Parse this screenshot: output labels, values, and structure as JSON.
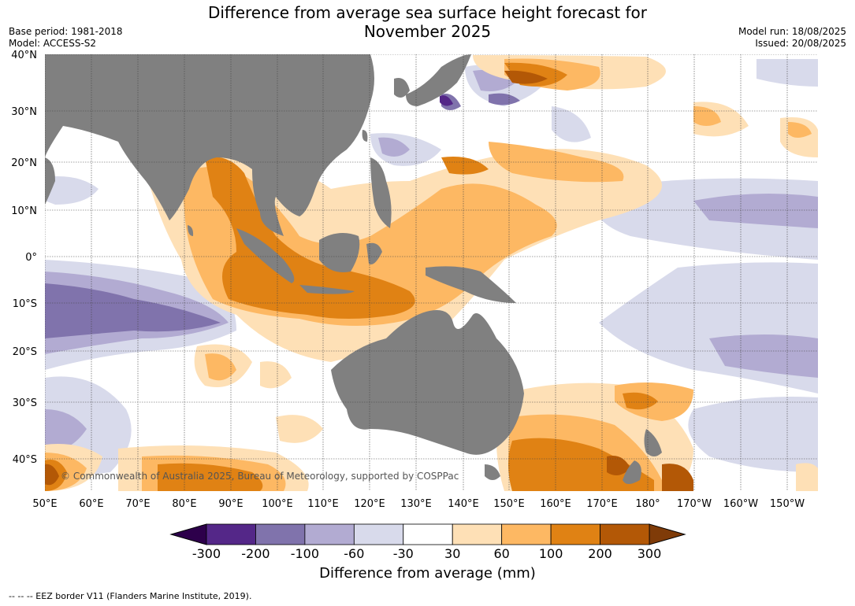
{
  "title_line1": "Difference from average sea surface height forecast for",
  "title_line2": "November 2025",
  "base_period": "Base period: 1981-2018",
  "model": "Model: ACCESS-S2",
  "model_run": "Model run: 18/08/2025",
  "issued": "Issued: 20/08/2025",
  "copyright": "© Commonwealth of Australia 2025, Bureau of Meteorology, supported by COSPPac",
  "footnote": "--  --  -- EEZ border V11 (Flanders Marine Institute, 2019).",
  "map": {
    "lat_labels": [
      "40°N",
      "30°N",
      "20°N",
      "10°N",
      "0°",
      "10°S",
      "20°S",
      "30°S",
      "40°S"
    ],
    "lon_labels": [
      "50°E",
      "60°E",
      "70°E",
      "80°E",
      "90°E",
      "100°E",
      "110°E",
      "120°E",
      "130°E",
      "140°E",
      "150°E",
      "160°E",
      "170°E",
      "180°",
      "170°W",
      "160°W",
      "150°W"
    ],
    "land_color": "#808080",
    "ocean_color": "#ffffff"
  },
  "colorbar": {
    "title": "Difference from average (mm)",
    "tick_labels": [
      "-300",
      "-200",
      "-100",
      "-60",
      "-30",
      "30",
      "60",
      "100",
      "200",
      "300"
    ],
    "colors": [
      "#542788",
      "#8073ac",
      "#b2abd2",
      "#d8daeb",
      "#ffffff",
      "#fee0b6",
      "#fdb863",
      "#e08214",
      "#b35806"
    ],
    "under_color": "#2d004b",
    "over_color": "#7f3b08"
  }
}
